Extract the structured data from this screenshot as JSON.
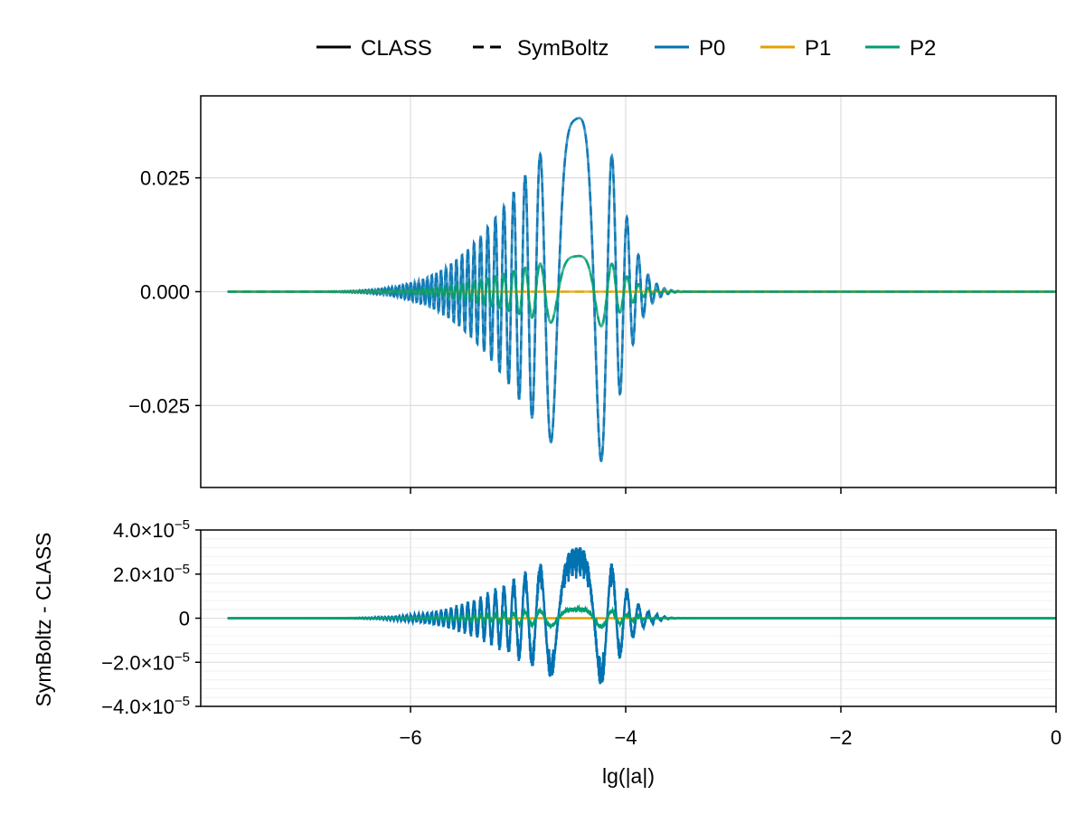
{
  "chart_data": [
    {
      "type": "line",
      "panel": "top",
      "ylim": [
        -0.043,
        0.043
      ],
      "xlim": [
        -7.95,
        0
      ],
      "y_ticks": [
        -0.025,
        0.0,
        0.025
      ],
      "y_tick_labels": [
        "−0.025",
        "0.000",
        "0.025"
      ],
      "x_ticks": [
        -6,
        -4,
        -2,
        0
      ],
      "grid": true,
      "legend": {
        "placement": "top-center",
        "entries": [
          {
            "label": "CLASS",
            "style": "solid",
            "color": "#000000"
          },
          {
            "label": "SymBoltz",
            "style": "dashed",
            "color": "#000000"
          },
          {
            "label": "P0",
            "style": "solid",
            "color": "#0072B2"
          },
          {
            "label": "P1",
            "style": "solid",
            "color": "#E69F00"
          },
          {
            "label": "P2",
            "style": "solid",
            "color": "#009E73"
          }
        ]
      },
      "series": [
        {
          "name": "P0",
          "color": "#0072B2",
          "x_start": -7.7,
          "peak_x": -4.3,
          "peak_amplitude": 0.039,
          "description_free": true
        },
        {
          "name": "P1",
          "color": "#E69F00",
          "x_start": -7.7,
          "peak_x": -4.3,
          "peak_amplitude": 0.0
        },
        {
          "name": "P2",
          "color": "#009E73",
          "x_start": -7.7,
          "peak_x": -4.3,
          "peak_amplitude": 0.008
        }
      ]
    },
    {
      "type": "line",
      "panel": "bottom",
      "xlabel": "lg(|a|)",
      "ylabel": "SymBoltz - CLASS",
      "ylim": [
        -4e-05,
        4e-05
      ],
      "xlim": [
        -7.95,
        0
      ],
      "y_ticks": [
        -4e-05,
        -2e-05,
        0,
        2e-05,
        4e-05
      ],
      "y_tick_labels": [
        {
          "mant": "−4.0×10",
          "exp": "−5"
        },
        {
          "mant": "−2.0×10",
          "exp": "−5"
        },
        {
          "mant": "0",
          "exp": ""
        },
        {
          "mant": "2.0×10",
          "exp": "−5"
        },
        {
          "mant": "4.0×10",
          "exp": "−5"
        }
      ],
      "x_ticks": [
        -6,
        -4,
        -2,
        0
      ],
      "x_tick_labels": [
        "−6",
        "−4",
        "−2",
        "0"
      ],
      "grid": true,
      "series": [
        {
          "name": "P0",
          "color": "#0072B2",
          "peak_x": -4.3,
          "peak_amplitude": 3.3e-05
        },
        {
          "name": "P1",
          "color": "#E69F00",
          "peak_x": -4.3,
          "peak_amplitude": 0.0
        },
        {
          "name": "P2",
          "color": "#009E73",
          "peak_x": -4.3,
          "peak_amplitude": 5e-06
        }
      ]
    }
  ],
  "legend_labels": {
    "class": "CLASS",
    "symboltz": "SymBoltz",
    "p0": "P0",
    "p1": "P1",
    "p2": "P2"
  },
  "axes": {
    "xlabel": "lg(|a|)",
    "ylabel": "SymBoltz - CLASS"
  }
}
